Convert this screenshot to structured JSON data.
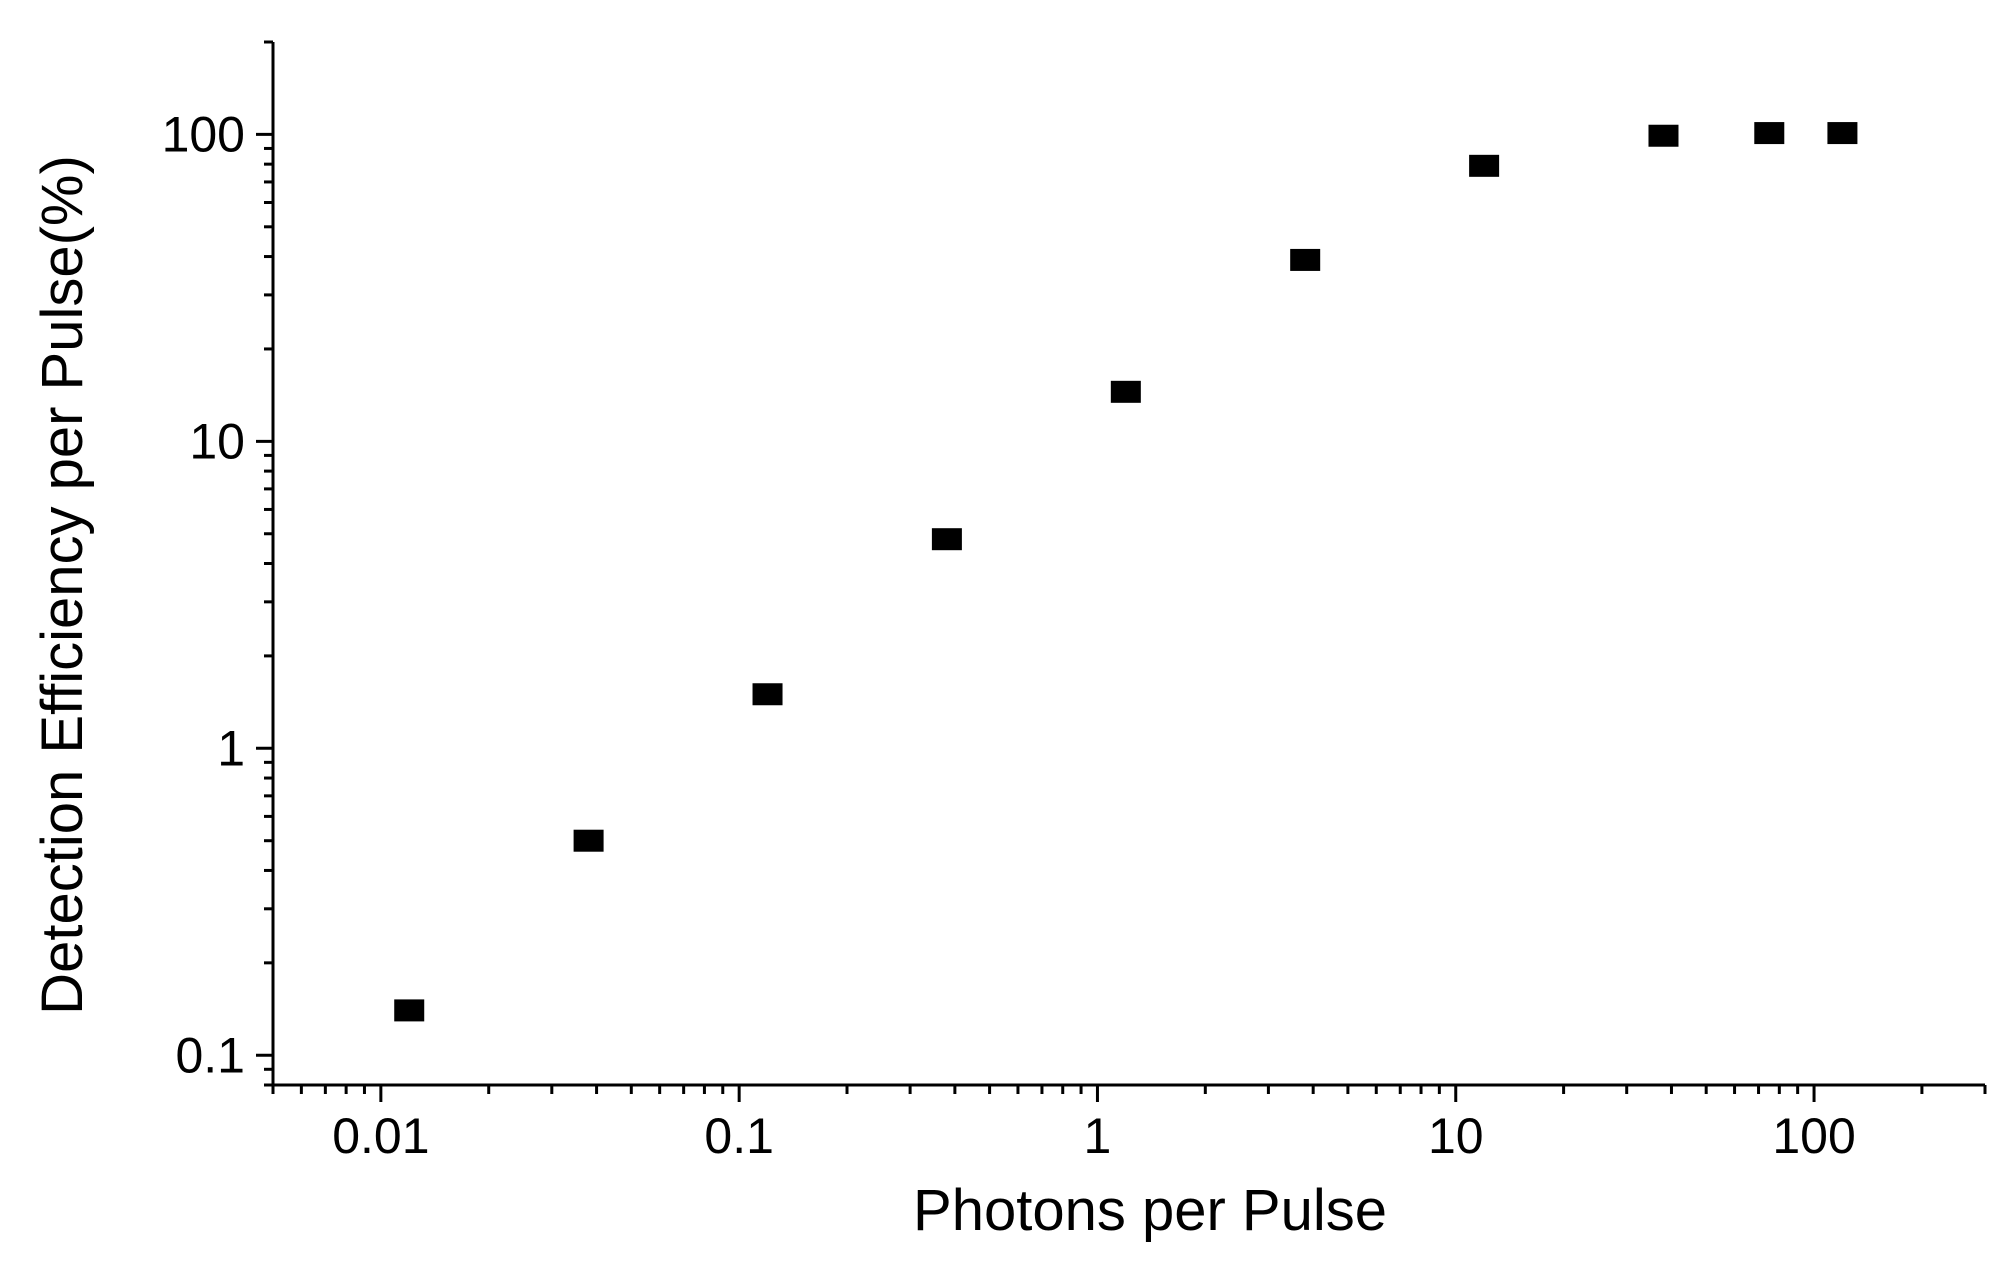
{
  "chart_data": {
    "type": "scatter",
    "title": "",
    "xlabel": "Photons per Pulse",
    "ylabel": "Detection Efficiency per Pulse(%)",
    "xscale": "log",
    "yscale": "log",
    "xlim": [
      0.005,
      300
    ],
    "ylim": [
      0.08,
      200
    ],
    "x_ticks": [
      {
        "value": 0.01,
        "label": "0.01"
      },
      {
        "value": 0.1,
        "label": "0.1"
      },
      {
        "value": 1,
        "label": "1"
      },
      {
        "value": 10,
        "label": "10"
      },
      {
        "value": 100,
        "label": "100"
      }
    ],
    "y_ticks": [
      {
        "value": 0.1,
        "label": "0.1"
      },
      {
        "value": 1,
        "label": "1"
      },
      {
        "value": 10,
        "label": "10"
      },
      {
        "value": 100,
        "label": "100"
      }
    ],
    "grid": false,
    "legend": "none",
    "marker": "square",
    "color": "#000000",
    "series": [
      {
        "points": [
          {
            "x": 0.012,
            "y": 0.14
          },
          {
            "x": 0.038,
            "y": 0.5
          },
          {
            "x": 0.12,
            "y": 1.5
          },
          {
            "x": 0.38,
            "y": 4.8
          },
          {
            "x": 1.2,
            "y": 14.5
          },
          {
            "x": 3.8,
            "y": 39
          },
          {
            "x": 12,
            "y": 79
          },
          {
            "x": 38,
            "y": 99
          },
          {
            "x": 75,
            "y": 101
          },
          {
            "x": 120,
            "y": 101
          }
        ]
      }
    ]
  }
}
